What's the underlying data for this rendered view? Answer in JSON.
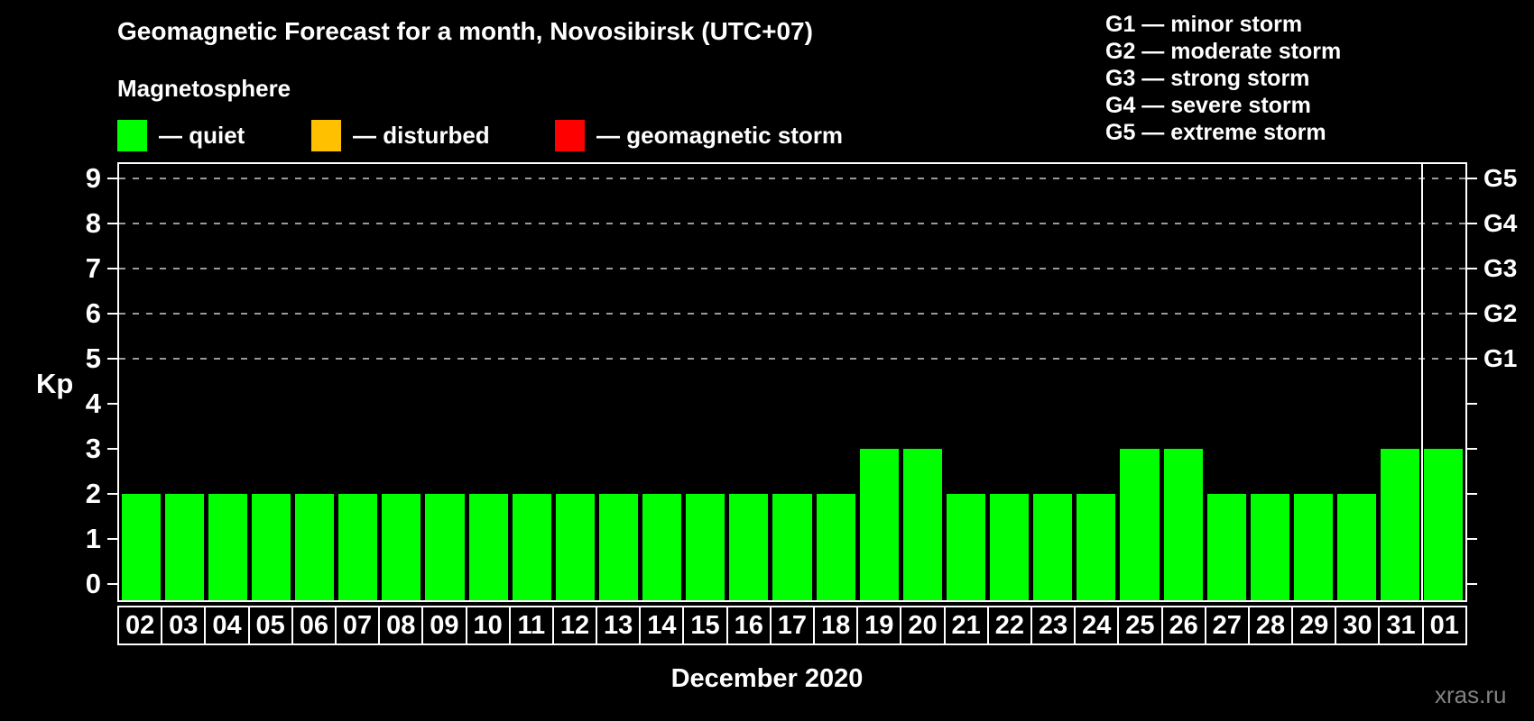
{
  "page": {
    "title": "Geomagnetic Forecast for a month, Novosibirsk (UTC+07)",
    "subtitle": "Magnetosphere",
    "watermark": "xras.ru"
  },
  "legend": {
    "items": [
      {
        "name": "quiet",
        "label": "— quiet",
        "color": "#00ff00"
      },
      {
        "name": "disturbed",
        "label": "— disturbed",
        "color": "#ffc000"
      },
      {
        "name": "geomagnetic-storm",
        "label": "— geomagnetic storm",
        "color": "#ff0000"
      }
    ]
  },
  "g_scale_legend": {
    "lines": [
      "G1 — minor storm",
      "G2 — moderate storm",
      "G3 — strong storm",
      "G4 — severe storm",
      "G5 — extreme storm"
    ]
  },
  "chart_data": {
    "type": "bar",
    "title": "Geomagnetic Forecast for a month, Novosibirsk (UTC+07)",
    "xlabel": "December 2020",
    "ylabel": "Kp",
    "ylim": [
      0,
      9
    ],
    "grid": "horizontal dashed gridlines at Kp 5,6,7,8,9 (G1–G5 levels)",
    "legend_position": "top-left and top-right",
    "bar_color": "#00ff00",
    "background_color": "#000000",
    "categories": [
      "02",
      "03",
      "04",
      "05",
      "06",
      "07",
      "08",
      "09",
      "10",
      "11",
      "12",
      "13",
      "14",
      "15",
      "16",
      "17",
      "18",
      "19",
      "20",
      "21",
      "22",
      "23",
      "24",
      "25",
      "26",
      "27",
      "28",
      "29",
      "30",
      "31",
      "01"
    ],
    "values": [
      2,
      2,
      2,
      2,
      2,
      2,
      2,
      2,
      2,
      2,
      2,
      2,
      2,
      2,
      2,
      2,
      2,
      3,
      3,
      2,
      2,
      2,
      2,
      3,
      3,
      2,
      2,
      2,
      2,
      3,
      3
    ],
    "y_axis": {
      "label": "Kp",
      "ticks": [
        9,
        8,
        7,
        6,
        5,
        4,
        3,
        2,
        1,
        0
      ]
    },
    "right_axis": {
      "ticks": [
        {
          "label": "G5",
          "kp": 9
        },
        {
          "label": "G4",
          "kp": 8
        },
        {
          "label": "G3",
          "kp": 7
        },
        {
          "label": "G2",
          "kp": 6
        },
        {
          "label": "G1",
          "kp": 5
        }
      ]
    },
    "month_separator_before_index": 30
  }
}
